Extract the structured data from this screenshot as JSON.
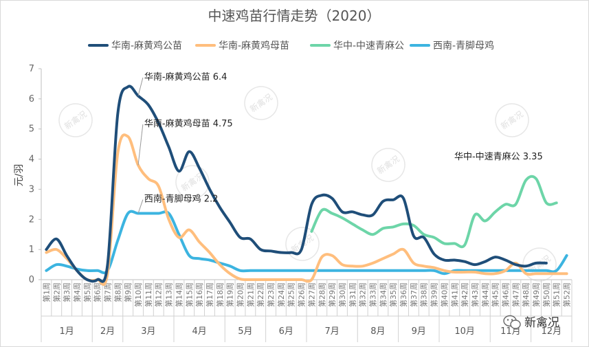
{
  "chart_data": {
    "type": "line",
    "title": "中速鸡苗行情走势（2020）",
    "ylabel": "元/羽",
    "ylim": [
      0,
      7
    ],
    "yticks": [
      0,
      1,
      2,
      3,
      4,
      5,
      6,
      7
    ],
    "grid": false,
    "legend_position": "top",
    "categories": [
      "第1周",
      "第2周",
      "第3周",
      "第4周",
      "第5周",
      "第6周",
      "第7周",
      "第8周",
      "第9周",
      "第10周",
      "第11周",
      "第12周",
      "第13周",
      "第14周",
      "第15周",
      "第16周",
      "第17周",
      "第18周",
      "第19周",
      "第20周",
      "第21周",
      "第22周",
      "第23周",
      "第24周",
      "第25周",
      "第26周",
      "第27周",
      "第28周",
      "第29周",
      "第30周",
      "第31周",
      "第32周",
      "第33周",
      "第34周",
      "第35周",
      "第36周",
      "第37周",
      "第38周",
      "第39周",
      "第40周",
      "第41周",
      "第42周",
      "第43周",
      "第44周",
      "第45周",
      "第46周",
      "第47周",
      "第48周",
      "第49周",
      "第50周",
      "第51周",
      "第52周"
    ],
    "months": [
      {
        "label": "1月",
        "start": 1,
        "end": 5
      },
      {
        "label": "2月",
        "start": 6,
        "end": 8
      },
      {
        "label": "3月",
        "start": 9,
        "end": 13
      },
      {
        "label": "4月",
        "start": 14,
        "end": 18
      },
      {
        "label": "5月",
        "start": 19,
        "end": 22
      },
      {
        "label": "6月",
        "start": 23,
        "end": 26
      },
      {
        "label": "7月",
        "start": 27,
        "end": 31
      },
      {
        "label": "8月",
        "start": 32,
        "end": 35
      },
      {
        "label": "9月",
        "start": 36,
        "end": 39
      },
      {
        "label": "10月",
        "start": 40,
        "end": 44
      },
      {
        "label": "11月",
        "start": 45,
        "end": 48
      },
      {
        "label": "12月",
        "start": 49,
        "end": 52
      }
    ],
    "series": [
      {
        "name": "华南-麻黄鸡公苗",
        "color": "#1f4e79",
        "values": [
          1.0,
          1.35,
          0.8,
          0.3,
          0,
          0,
          0.5,
          5.5,
          6.4,
          6.1,
          5.8,
          5.2,
          4.4,
          3.6,
          4.25,
          3.7,
          3.0,
          2.4,
          1.9,
          1.4,
          1.35,
          1.0,
          0.95,
          0.9,
          0.9,
          1.0,
          2.5,
          2.8,
          2.7,
          2.25,
          2.25,
          2.15,
          2.15,
          2.6,
          2.65,
          2.7,
          1.45,
          1.4,
          0.85,
          0.65,
          0.65,
          0.6,
          0.5,
          0.6,
          0.75,
          0.65,
          0.5,
          0.45,
          0.55,
          0.55,
          null,
          null
        ]
      },
      {
        "name": "华南-麻黄鸡母苗",
        "color": "#ffbe7d",
        "values": [
          0.9,
          1.0,
          0.7,
          0.3,
          0,
          0,
          0.2,
          4.2,
          4.75,
          3.8,
          3.35,
          3.1,
          2.0,
          1.4,
          1.65,
          1.25,
          0.9,
          0.5,
          0.2,
          0.02,
          0,
          0,
          0,
          0,
          0,
          0,
          0,
          0.75,
          0.8,
          0.5,
          0.45,
          0.45,
          0.55,
          0.7,
          0.85,
          1.0,
          0.55,
          0.45,
          0.4,
          0.3,
          0.25,
          0.25,
          0.25,
          0.2,
          0.2,
          0.3,
          0.55,
          0.2,
          0.2,
          0.2,
          0.2,
          0.2
        ]
      },
      {
        "name": "华中-中速青麻公",
        "color": "#6dd5a8",
        "values": [
          null,
          null,
          null,
          null,
          null,
          null,
          null,
          null,
          null,
          null,
          null,
          null,
          null,
          null,
          null,
          null,
          null,
          null,
          null,
          null,
          null,
          null,
          null,
          null,
          null,
          null,
          1.6,
          2.3,
          2.2,
          2.05,
          1.85,
          1.65,
          1.5,
          1.7,
          1.75,
          1.85,
          1.8,
          1.5,
          1.4,
          1.2,
          1.2,
          1.15,
          2.15,
          1.95,
          2.25,
          2.5,
          2.5,
          3.3,
          3.35,
          2.55,
          2.55,
          null
        ]
      },
      {
        "name": "西南-青脚母鸡",
        "color": "#3cb4e0",
        "values": [
          0.3,
          0.5,
          0.45,
          0.35,
          0.3,
          0.3,
          0.3,
          1.3,
          2.2,
          2.2,
          2.2,
          2.2,
          2.2,
          1.5,
          0.8,
          0.7,
          0.65,
          0.55,
          0.45,
          0.3,
          0.3,
          0.3,
          0.3,
          0.3,
          0.3,
          0.3,
          0.3,
          0.3,
          0.3,
          0.3,
          0.3,
          0.3,
          0.3,
          0.3,
          0.3,
          0.3,
          0.3,
          0.3,
          0.3,
          0.2,
          0.3,
          0.3,
          0.3,
          0.3,
          0.3,
          0.3,
          0.3,
          0.3,
          0.3,
          0.3,
          0.3,
          0.8
        ]
      }
    ],
    "annotations": [
      {
        "text": "华南-麻黄鸡公苗 6.4",
        "series": 0,
        "point": 9,
        "label_week": 11,
        "label_value": 6.75
      },
      {
        "text": "华南-麻黄鸡母苗 4.75",
        "series": 1,
        "point": 9,
        "label_week": 11,
        "label_value": 5.2
      },
      {
        "text": "西南-青脚母鸡 2.2",
        "series": 3,
        "point": 9,
        "label_week": 11,
        "label_value": 2.7
      },
      {
        "text": "华中-中速青麻公 3.35",
        "series": 2,
        "point": 49,
        "label_week": 43,
        "label_value": 4.1
      }
    ]
  },
  "watermark": "新禽况",
  "brand": {
    "name": "新禽况"
  }
}
